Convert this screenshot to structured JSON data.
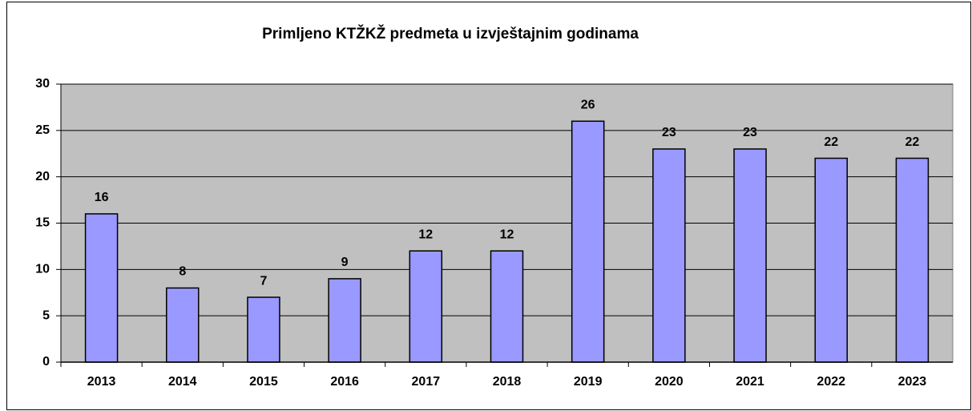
{
  "chart_data": {
    "type": "bar",
    "title": "Primljeno KTŽKŽ predmeta u izvještajnim godinama",
    "categories": [
      "2013",
      "2014",
      "2015",
      "2016",
      "2017",
      "2018",
      "2019",
      "2020",
      "2021",
      "2022",
      "2023"
    ],
    "values": [
      16,
      8,
      7,
      9,
      12,
      12,
      26,
      23,
      23,
      22,
      22
    ],
    "color": "#9999ff",
    "ylim": [
      0,
      30
    ],
    "yticks": [
      0,
      5,
      10,
      15,
      20,
      25,
      30
    ],
    "grid": true
  }
}
